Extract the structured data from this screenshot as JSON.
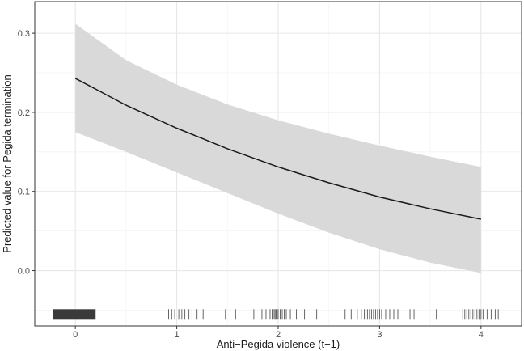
{
  "chart_data": {
    "type": "line",
    "title": "",
    "xlabel": "Anti−Pegida violence (t−1)",
    "ylabel": "Predicted value for Pegida termination",
    "xlim": [
      -0.4,
      4.4
    ],
    "ylim": [
      -0.07,
      0.34
    ],
    "x_ticks": [
      0,
      1,
      2,
      3,
      4
    ],
    "x_tick_labels": [
      "0",
      "1",
      "2",
      "3",
      "4"
    ],
    "y_ticks": [
      0.0,
      0.1,
      0.2,
      0.3
    ],
    "y_tick_labels": [
      "0.0",
      "0.1",
      "0.2",
      "0.3"
    ],
    "grid": true,
    "series": [
      {
        "x": [
          0,
          0.5,
          1,
          1.5,
          2,
          2.5,
          3,
          3.5,
          4
        ],
        "values": [
          0.243,
          0.209,
          0.18,
          0.154,
          0.131,
          0.111,
          0.093,
          0.078,
          0.065
        ],
        "ci_lower": [
          0.175,
          0.15,
          0.124,
          0.098,
          0.072,
          0.048,
          0.027,
          0.01,
          -0.003
        ],
        "ci_upper": [
          0.312,
          0.266,
          0.235,
          0.21,
          0.19,
          0.173,
          0.158,
          0.144,
          0.131
        ]
      }
    ],
    "rug": {
      "y": -0.056,
      "dense_band": [
        -0.22,
        0.2
      ],
      "x": [
        0.92,
        0.95,
        0.98,
        1.02,
        1.05,
        1.08,
        1.12,
        1.15,
        1.2,
        1.26,
        1.48,
        1.58,
        1.76,
        1.84,
        1.88,
        1.92,
        1.94,
        1.96,
        1.97,
        1.98,
        1.99,
        2.0,
        2.02,
        2.04,
        2.06,
        2.08,
        2.12,
        2.18,
        2.26,
        2.38,
        2.66,
        2.72,
        2.78,
        2.82,
        2.85,
        2.88,
        2.9,
        2.92,
        2.94,
        2.96,
        2.98,
        3.0,
        3.02,
        3.06,
        3.1,
        3.14,
        3.18,
        3.24,
        3.3,
        3.34,
        3.56,
        3.82,
        3.84,
        3.86,
        3.88,
        3.9,
        3.92,
        3.94,
        3.96,
        3.98,
        4.0,
        4.02,
        4.06,
        4.1,
        4.14,
        4.17
      ]
    },
    "colors": {
      "line": "#1a1a1a",
      "band": "#d9d9d9",
      "grid_major": "#e8e8e8",
      "grid_minor": "#f4f4f4",
      "rug": "#555555",
      "border": "#333333"
    }
  }
}
